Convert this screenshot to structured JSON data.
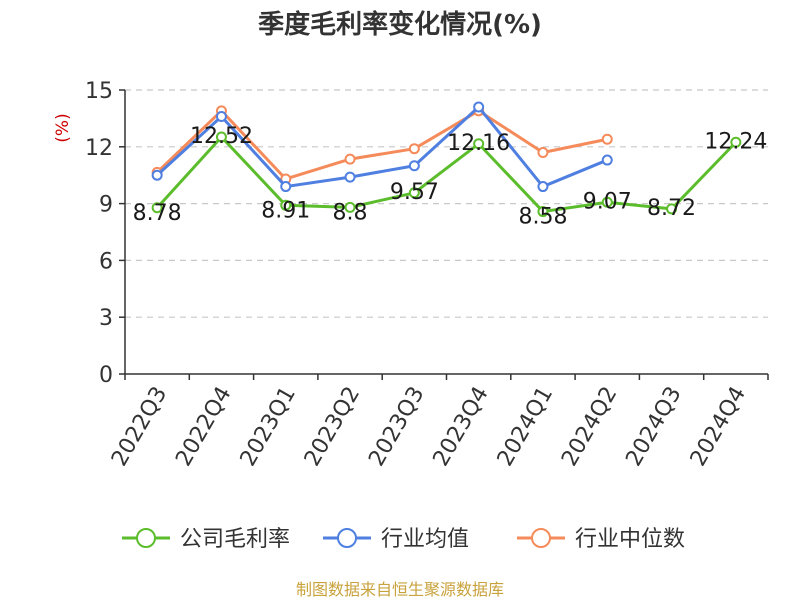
{
  "title": "季度毛利率变化情况(%)",
  "source": "制图数据来自恒生聚源数据库",
  "chart_data": {
    "type": "line",
    "title": "季度毛利率变化情况(%)",
    "ylabel": "(%)",
    "xlabel": "",
    "ylim": [
      0,
      15
    ],
    "yticks": [
      0,
      3,
      6,
      9,
      12,
      15
    ],
    "grid": true,
    "legend_position": "bottom",
    "categories": [
      "2022Q3",
      "2022Q4",
      "2023Q1",
      "2023Q2",
      "2023Q3",
      "2023Q4",
      "2024Q1",
      "2024Q2",
      "2024Q3",
      "2024Q4"
    ],
    "series": [
      {
        "name": "公司毛利率",
        "color": "#5cbd2c",
        "values": [
          8.78,
          12.52,
          8.91,
          8.8,
          9.57,
          12.16,
          8.58,
          9.07,
          8.72,
          12.24
        ],
        "labels": [
          "8.78",
          "12.52",
          "8.91",
          "8.8",
          "9.57",
          "12.16",
          "8.58",
          "9.07",
          "8.72",
          "12.24"
        ]
      },
      {
        "name": "行业均值",
        "color": "#4f7fe0",
        "values": [
          10.5,
          13.6,
          9.9,
          10.4,
          11.0,
          14.1,
          9.9,
          11.3,
          null,
          null
        ]
      },
      {
        "name": "行业中位数",
        "color": "#f58b5a",
        "values": [
          10.65,
          13.9,
          10.3,
          11.35,
          11.9,
          13.9,
          11.7,
          12.4,
          null,
          null
        ]
      }
    ]
  }
}
